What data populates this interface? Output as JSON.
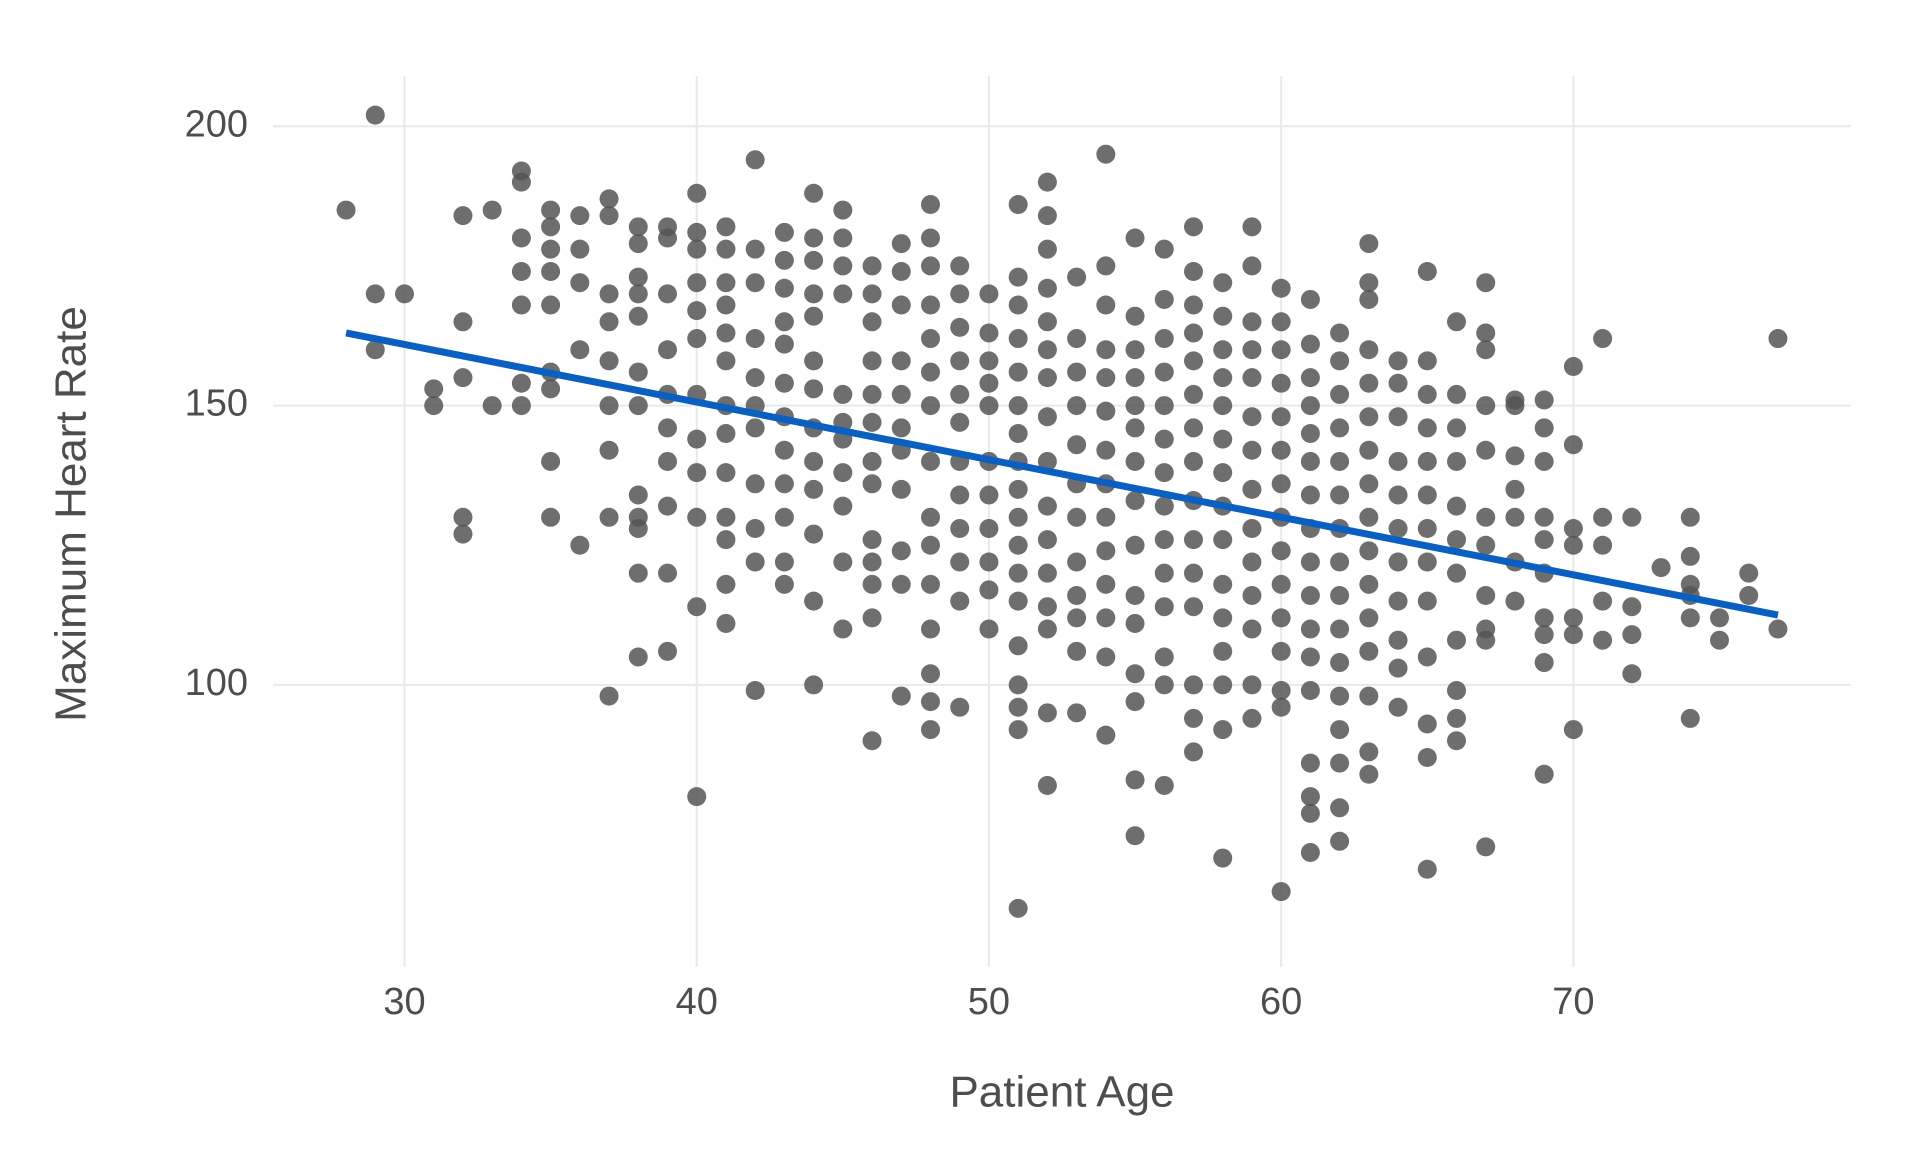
{
  "chart_data": {
    "type": "scatter",
    "x_label": "Patient Age",
    "y_label": "Maximum Heart Rate",
    "xlim": [
      25.5,
      79.5
    ],
    "xticks": [
      30,
      40,
      50,
      60,
      70
    ],
    "ylim": [
      49.5,
      209
    ],
    "yticks": [
      100,
      150,
      200
    ],
    "grid": true,
    "series": [
      {
        "type": "scatter",
        "color": "#555555",
        "x": [
          28,
          29,
          29,
          29,
          30,
          31,
          31,
          32,
          32,
          32,
          32,
          32,
          33,
          33,
          34,
          34,
          34,
          34,
          34,
          34,
          34,
          35,
          35,
          35,
          35,
          35,
          35,
          35,
          35,
          35,
          36,
          36,
          36,
          36,
          36,
          37,
          37,
          37,
          37,
          37,
          37,
          37,
          37,
          37,
          38,
          38,
          38,
          38,
          38,
          38,
          38,
          38,
          38,
          38,
          38,
          38,
          39,
          39,
          39,
          39,
          39,
          39,
          39,
          39,
          39,
          39,
          40,
          40,
          40,
          40,
          40,
          40,
          40,
          40,
          40,
          40,
          40,
          40,
          41,
          41,
          41,
          41,
          41,
          41,
          41,
          41,
          41,
          41,
          41,
          41,
          41,
          42,
          42,
          42,
          42,
          42,
          42,
          42,
          42,
          42,
          42,
          42,
          43,
          43,
          43,
          43,
          43,
          43,
          43,
          43,
          43,
          43,
          43,
          43,
          44,
          44,
          44,
          44,
          44,
          44,
          44,
          44,
          44,
          44,
          44,
          44,
          44,
          45,
          45,
          45,
          45,
          45,
          45,
          45,
          45,
          45,
          45,
          45,
          46,
          46,
          46,
          46,
          46,
          46,
          46,
          46,
          46,
          46,
          46,
          46,
          46,
          47,
          47,
          47,
          47,
          47,
          47,
          47,
          47,
          47,
          47,
          47,
          48,
          48,
          48,
          48,
          48,
          48,
          48,
          48,
          48,
          48,
          48,
          48,
          48,
          48,
          48,
          49,
          49,
          49,
          49,
          49,
          49,
          49,
          49,
          49,
          49,
          49,
          49,
          50,
          50,
          50,
          50,
          50,
          50,
          50,
          50,
          50,
          50,
          50,
          51,
          51,
          51,
          51,
          51,
          51,
          51,
          51,
          51,
          51,
          51,
          51,
          51,
          51,
          51,
          51,
          51,
          51,
          52,
          52,
          52,
          52,
          52,
          52,
          52,
          52,
          52,
          52,
          52,
          52,
          52,
          52,
          52,
          52,
          53,
          53,
          53,
          53,
          53,
          53,
          53,
          53,
          53,
          53,
          53,
          53,
          54,
          54,
          54,
          54,
          54,
          54,
          54,
          54,
          54,
          54,
          54,
          54,
          54,
          54,
          55,
          55,
          55,
          55,
          55,
          55,
          55,
          55,
          55,
          55,
          55,
          55,
          55,
          55,
          55,
          56,
          56,
          56,
          56,
          56,
          56,
          56,
          56,
          56,
          56,
          56,
          56,
          56,
          56,
          57,
          57,
          57,
          57,
          57,
          57,
          57,
          57,
          57,
          57,
          57,
          57,
          57,
          57,
          57,
          58,
          58,
          58,
          58,
          58,
          58,
          58,
          58,
          58,
          58,
          58,
          58,
          58,
          58,
          58,
          59,
          59,
          59,
          59,
          59,
          59,
          59,
          59,
          59,
          59,
          59,
          59,
          59,
          59,
          60,
          60,
          60,
          60,
          60,
          60,
          60,
          60,
          60,
          60,
          60,
          60,
          60,
          60,
          60,
          61,
          61,
          61,
          61,
          61,
          61,
          61,
          61,
          61,
          61,
          61,
          61,
          61,
          61,
          61,
          61,
          61,
          62,
          62,
          62,
          62,
          62,
          62,
          62,
          62,
          62,
          62,
          62,
          62,
          62,
          62,
          62,
          62,
          63,
          63,
          63,
          63,
          63,
          63,
          63,
          63,
          63,
          63,
          63,
          63,
          63,
          63,
          63,
          63,
          64,
          64,
          64,
          64,
          64,
          64,
          64,
          64,
          64,
          64,
          64,
          65,
          65,
          65,
          65,
          65,
          65,
          65,
          65,
          65,
          65,
          65,
          65,
          65,
          66,
          66,
          66,
          66,
          66,
          66,
          66,
          66,
          66,
          66,
          66,
          67,
          67,
          67,
          67,
          67,
          67,
          67,
          67,
          67,
          67,
          67,
          68,
          68,
          68,
          68,
          68,
          68,
          68,
          69,
          69,
          69,
          69,
          69,
          69,
          69,
          69,
          69,
          69,
          70,
          70,
          70,
          70,
          70,
          70,
          70,
          71,
          71,
          71,
          71,
          71,
          72,
          72,
          72,
          72,
          73,
          74,
          74,
          74,
          74,
          74,
          74,
          75,
          75,
          76,
          76,
          77,
          77
        ],
        "values": [
          185,
          202,
          170,
          160,
          170,
          153,
          150,
          184,
          165,
          155,
          130,
          127,
          185,
          150,
          192,
          190,
          180,
          174,
          168,
          154,
          150,
          185,
          182,
          178,
          174,
          168,
          156,
          153,
          140,
          130,
          184,
          178,
          172,
          160,
          125,
          187,
          184,
          170,
          165,
          158,
          150,
          142,
          130,
          98,
          182,
          179,
          173,
          170,
          166,
          156,
          150,
          134,
          130,
          128,
          120,
          105,
          182,
          180,
          170,
          160,
          152,
          146,
          140,
          132,
          120,
          106,
          188,
          181,
          178,
          172,
          167,
          162,
          152,
          144,
          138,
          130,
          114,
          80,
          182,
          178,
          172,
          168,
          163,
          158,
          150,
          145,
          138,
          130,
          126,
          118,
          111,
          194,
          178,
          172,
          162,
          155,
          150,
          146,
          136,
          128,
          122,
          99,
          181,
          176,
          171,
          165,
          161,
          154,
          148,
          142,
          136,
          130,
          122,
          118,
          188,
          180,
          176,
          170,
          166,
          158,
          153,
          146,
          140,
          135,
          127,
          115,
          100,
          185,
          180,
          175,
          170,
          152,
          147,
          144,
          138,
          132,
          122,
          110,
          175,
          170,
          165,
          158,
          152,
          147,
          140,
          136,
          126,
          122,
          118,
          112,
          90,
          179,
          174,
          168,
          158,
          152,
          146,
          142,
          135,
          124,
          118,
          98,
          186,
          180,
          175,
          168,
          162,
          156,
          150,
          140,
          130,
          125,
          118,
          110,
          102,
          97,
          92,
          175,
          170,
          164,
          158,
          152,
          147,
          140,
          134,
          128,
          122,
          115,
          96,
          170,
          163,
          158,
          154,
          150,
          140,
          134,
          128,
          122,
          117,
          110,
          186,
          173,
          168,
          162,
          156,
          150,
          145,
          140,
          135,
          130,
          125,
          120,
          115,
          107,
          100,
          96,
          92,
          60,
          190,
          184,
          178,
          171,
          165,
          160,
          155,
          148,
          140,
          132,
          126,
          120,
          114,
          110,
          95,
          82,
          173,
          162,
          156,
          150,
          143,
          136,
          130,
          122,
          116,
          112,
          106,
          95,
          195,
          175,
          168,
          160,
          155,
          149,
          142,
          136,
          130,
          124,
          118,
          112,
          105,
          91,
          180,
          166,
          160,
          155,
          150,
          146,
          140,
          133,
          125,
          116,
          111,
          102,
          97,
          83,
          73,
          178,
          169,
          162,
          156,
          150,
          144,
          138,
          132,
          126,
          120,
          114,
          105,
          100,
          82,
          182,
          174,
          168,
          163,
          158,
          152,
          146,
          140,
          133,
          126,
          120,
          114,
          100,
          94,
          88,
          172,
          166,
          160,
          155,
          150,
          144,
          138,
          132,
          126,
          118,
          112,
          106,
          100,
          92,
          69,
          182,
          175,
          165,
          160,
          155,
          148,
          142,
          135,
          128,
          122,
          116,
          110,
          100,
          94,
          171,
          165,
          160,
          154,
          148,
          142,
          136,
          130,
          124,
          118,
          112,
          106,
          99,
          96,
          63,
          169,
          161,
          155,
          150,
          145,
          140,
          134,
          128,
          122,
          116,
          110,
          105,
          99,
          86,
          80,
          77,
          70,
          163,
          158,
          152,
          146,
          140,
          134,
          128,
          122,
          116,
          110,
          104,
          98,
          92,
          86,
          78,
          72,
          179,
          172,
          169,
          160,
          154,
          148,
          142,
          136,
          130,
          124,
          118,
          112,
          106,
          98,
          88,
          84,
          158,
          154,
          148,
          140,
          134,
          128,
          122,
          115,
          108,
          103,
          96,
          174,
          158,
          152,
          146,
          140,
          134,
          128,
          122,
          115,
          105,
          93,
          87,
          67,
          165,
          152,
          146,
          140,
          132,
          126,
          120,
          108,
          99,
          94,
          90,
          172,
          163,
          160,
          150,
          142,
          130,
          125,
          116,
          110,
          108,
          71,
          151,
          150,
          141,
          135,
          130,
          122,
          115,
          151,
          146,
          140,
          130,
          126,
          120,
          112,
          109,
          104,
          84,
          157,
          143,
          128,
          125,
          112,
          109,
          92,
          162,
          130,
          125,
          115,
          108,
          130,
          114,
          109,
          102,
          121,
          130,
          123,
          118,
          116,
          112,
          94,
          112,
          108,
          120,
          116,
          162,
          110
        ]
      },
      {
        "type": "line",
        "color": "#0a5fc0",
        "x": [
          28,
          77
        ],
        "values": [
          163,
          112.5
        ]
      }
    ]
  }
}
